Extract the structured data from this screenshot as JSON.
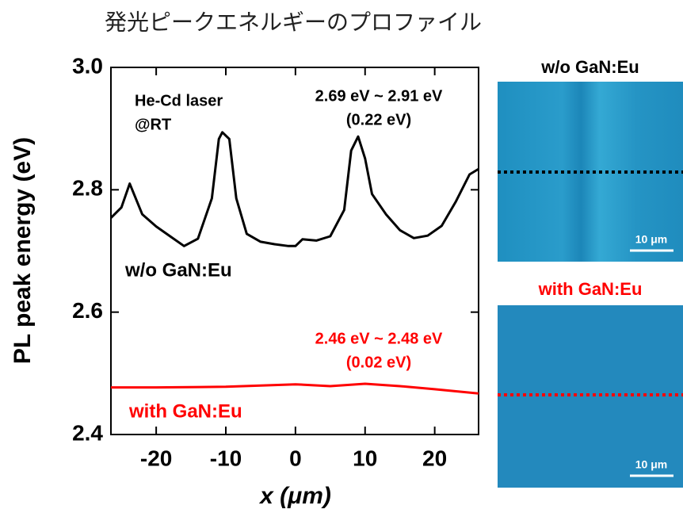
{
  "chart_data": {
    "type": "line",
    "title": "発光ピークエネルギーのプロファイル",
    "ylabel": "PL peak energy (eV)",
    "xlabel": "x (μm)",
    "xlim": [
      -26.5,
      26.3
    ],
    "xticks": [
      -20,
      -10,
      0,
      10,
      20
    ],
    "ylim": [
      2.4,
      3.0
    ],
    "yticks": [
      2.4,
      2.6,
      2.8,
      {
        "value": 3,
        "label": "3.0"
      }
    ],
    "series": [
      {
        "name": "w/o GaN:Eu",
        "color": "#000000",
        "x": [
          -26.5,
          -25,
          -23.8,
          -22,
          -20,
          -18,
          -16,
          -14,
          -12,
          -11,
          -10.5,
          -9.5,
          -8.5,
          -7,
          -5,
          -3,
          -1,
          0,
          1,
          3,
          5,
          7,
          8,
          9,
          10,
          11,
          13,
          15,
          17,
          19,
          21,
          23,
          25,
          26.3
        ],
        "values": [
          2.754,
          2.771,
          2.81,
          2.76,
          2.74,
          2.724,
          2.708,
          2.72,
          2.786,
          2.883,
          2.894,
          2.883,
          2.786,
          2.728,
          2.715,
          2.711,
          2.708,
          2.708,
          2.719,
          2.717,
          2.724,
          2.767,
          2.864,
          2.887,
          2.851,
          2.793,
          2.76,
          2.734,
          2.721,
          2.725,
          2.741,
          2.78,
          2.825,
          2.834
        ]
      },
      {
        "name": "with GaN:Eu",
        "color": "#ff0000",
        "x": [
          -26.5,
          -20,
          -10,
          0,
          5,
          10,
          15,
          20,
          26.3
        ],
        "values": [
          2.477,
          2.477,
          2.478,
          2.482,
          2.479,
          2.483,
          2.479,
          2.474,
          2.467
        ]
      }
    ],
    "annotations": [
      "He-Cd laser",
      "@RT",
      "2.69 eV ~ 2.91 eV",
      "(0.22 eV)",
      "2.46 eV ~ 2.48 eV",
      "(0.02 eV)"
    ],
    "images": [
      {
        "title": "w/o GaN:Eu",
        "color": "#000000",
        "scale_bar": "10 μm"
      },
      {
        "title": "with GaN:Eu",
        "color": "#ff0000",
        "scale_bar": "10 μm"
      }
    ]
  }
}
